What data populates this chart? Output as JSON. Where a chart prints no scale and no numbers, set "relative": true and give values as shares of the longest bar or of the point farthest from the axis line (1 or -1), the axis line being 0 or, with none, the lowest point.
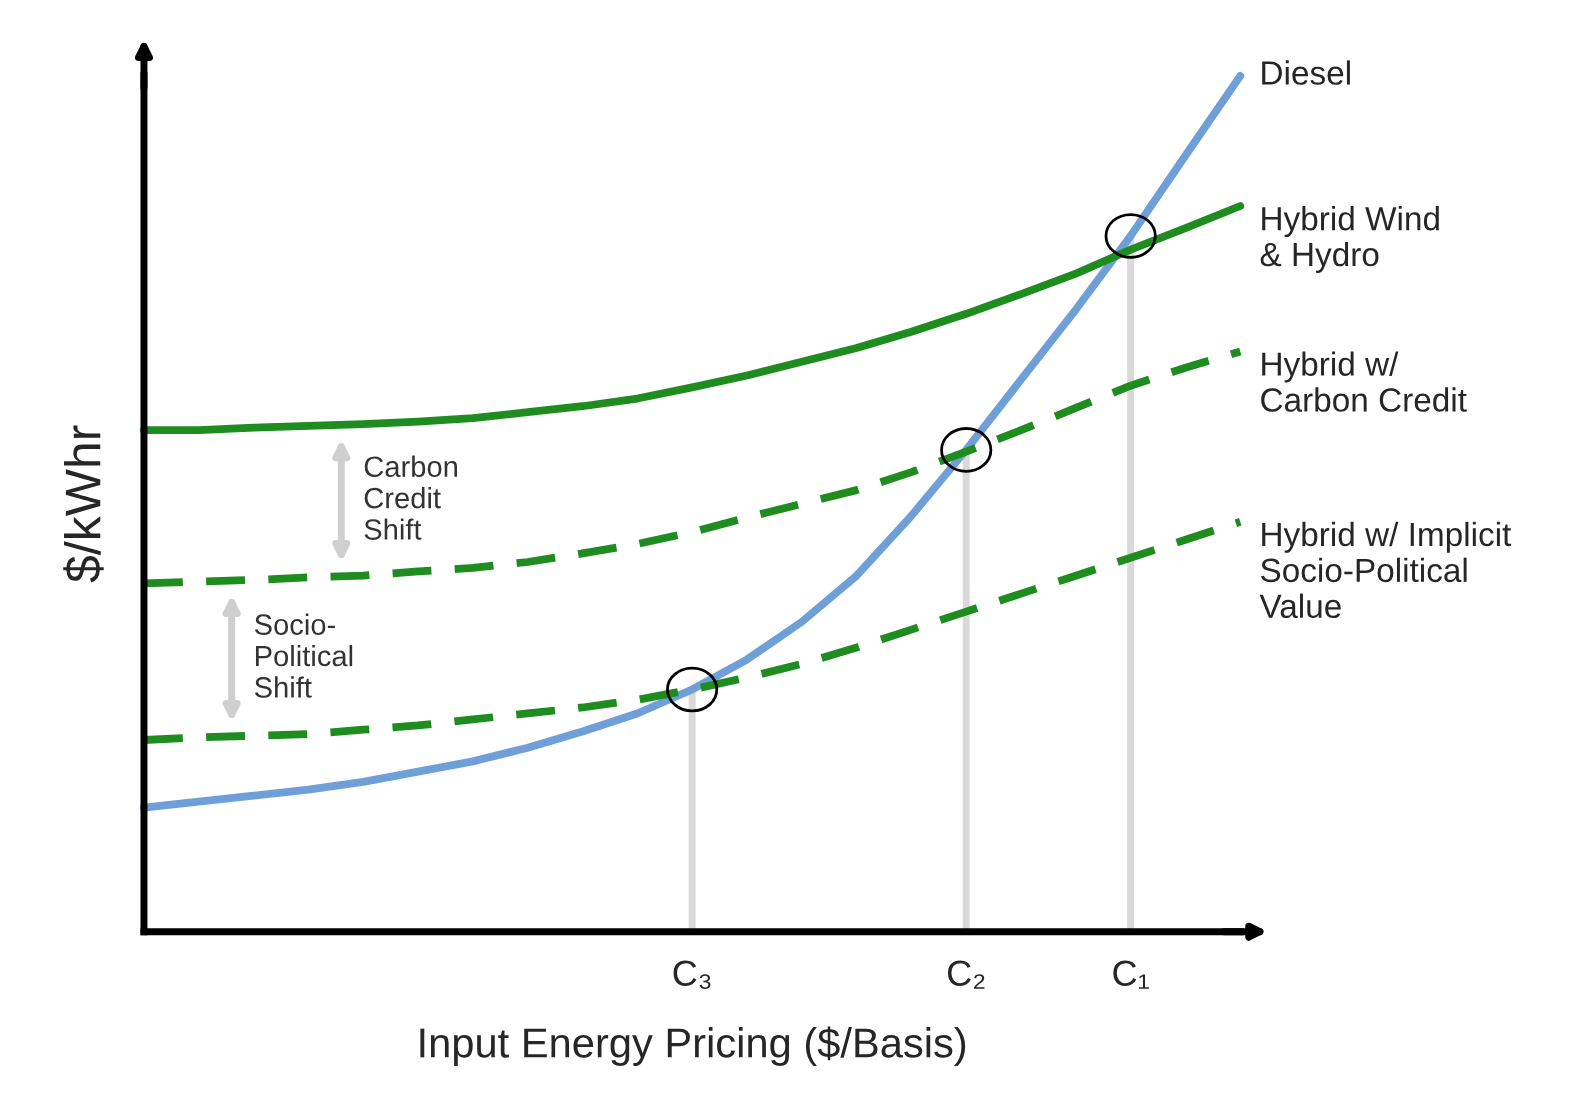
{
  "chart_data": {
    "type": "line",
    "relative": true,
    "xlabel": "Input Energy Pricing ($/Basis)",
    "ylabel": "$/kWhr",
    "categories": [
      null,
      null,
      null,
      null,
      null,
      null,
      null,
      null,
      null,
      null,
      "C₃",
      null,
      null,
      null,
      null,
      "C₂",
      null,
      null,
      "C₁",
      null,
      null
    ],
    "tick_labels": "x",
    "legend": false,
    "series": [
      {
        "name": "Diesel",
        "color": "#6f9fd8",
        "line_style": "solid",
        "values": [
          0.145,
          0.152,
          0.159,
          0.166,
          0.175,
          0.187,
          0.199,
          0.215,
          0.234,
          0.255,
          0.283,
          0.318,
          0.362,
          0.416,
          0.486,
          0.563,
          0.645,
          0.727,
          0.813,
          0.907,
          1
        ]
      },
      {
        "name": "Hybrid Wind\n& Hydro",
        "color": "#1e8c1e",
        "line_style": "solid",
        "values": [
          0.586,
          0.586,
          0.589,
          0.591,
          0.593,
          0.596,
          0.6,
          0.607,
          0.614,
          0.623,
          0.636,
          0.65,
          0.666,
          0.682,
          0.701,
          0.722,
          0.745,
          0.769,
          0.797,
          0.822,
          0.848
        ]
      },
      {
        "name": "Hybrid w/\nCarbon Credit",
        "color": "#1e8c1e",
        "line_style": "dashed",
        "values": [
          0.407,
          0.409,
          0.411,
          0.414,
          0.416,
          0.421,
          0.425,
          0.432,
          0.442,
          0.453,
          0.467,
          0.484,
          0.5,
          0.516,
          0.537,
          0.561,
          0.586,
          0.612,
          0.638,
          0.659,
          0.678
        ]
      },
      {
        "name": "Hybrid w/ Implicit\nSocio-Political\nValue",
        "color": "#1e8c1e",
        "line_style": "dashed",
        "values": [
          0.224,
          0.227,
          0.229,
          0.231,
          0.236,
          0.241,
          0.248,
          0.255,
          0.262,
          0.271,
          0.283,
          0.297,
          0.313,
          0.332,
          0.353,
          0.374,
          0.395,
          0.416,
          0.437,
          0.458,
          0.479
        ]
      }
    ],
    "ref_lines": [
      {
        "axis": "x",
        "value": "C₃",
        "color": "#d9d9d9"
      },
      {
        "axis": "x",
        "value": "C₂",
        "color": "#d9d9d9"
      },
      {
        "axis": "x",
        "value": "C₁",
        "color": "#d9d9d9"
      }
    ],
    "annotations": [
      "Carbon\nCredit\nShift",
      "Socio-\nPolitical\nShift"
    ]
  }
}
